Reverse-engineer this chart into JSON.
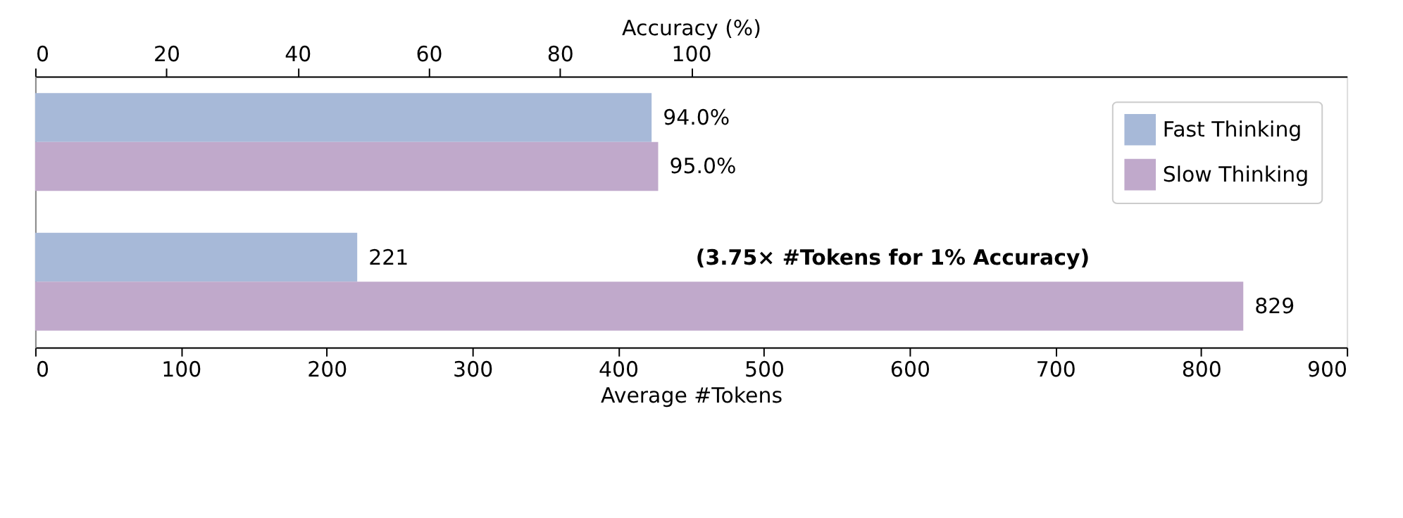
{
  "chart_data": {
    "type": "bar",
    "orientation": "horizontal",
    "categories": [
      null,
      null
    ],
    "series": [
      {
        "name": "Fast Thinking",
        "color": "#a7b9d8",
        "values": [
          null,
          221
        ],
        "value_labels": [
          null,
          "221"
        ]
      },
      {
        "name": "Slow Thinking",
        "color": "#c0a9cb",
        "values": [
          null,
          829
        ],
        "value_labels": [
          null,
          "829"
        ]
      },
      {
        "color": "#a7b9d8",
        "values": [
          94.0,
          null
        ],
        "axis": "x2",
        "value_labels": [
          "94.0%",
          null
        ]
      },
      {
        "color": "#c0a9cb",
        "values": [
          95.0,
          null
        ],
        "axis": "x2",
        "value_labels": [
          "95.0%",
          null
        ]
      }
    ],
    "xlabel": "Average #Tokens",
    "x2label": "Accuracy (%)",
    "xlim": [
      0,
      900
    ],
    "xticks": [
      0,
      100,
      200,
      300,
      400,
      500,
      600,
      700,
      800,
      900
    ],
    "x2lim": [
      0,
      200
    ],
    "x2ticks": [
      0,
      20,
      40,
      60,
      80,
      100
    ],
    "annotations": [
      "(3.75× #Tokens for 1% Accuracy)"
    ],
    "legend": "top right",
    "grid": false,
    "tick_labels": "x"
  }
}
